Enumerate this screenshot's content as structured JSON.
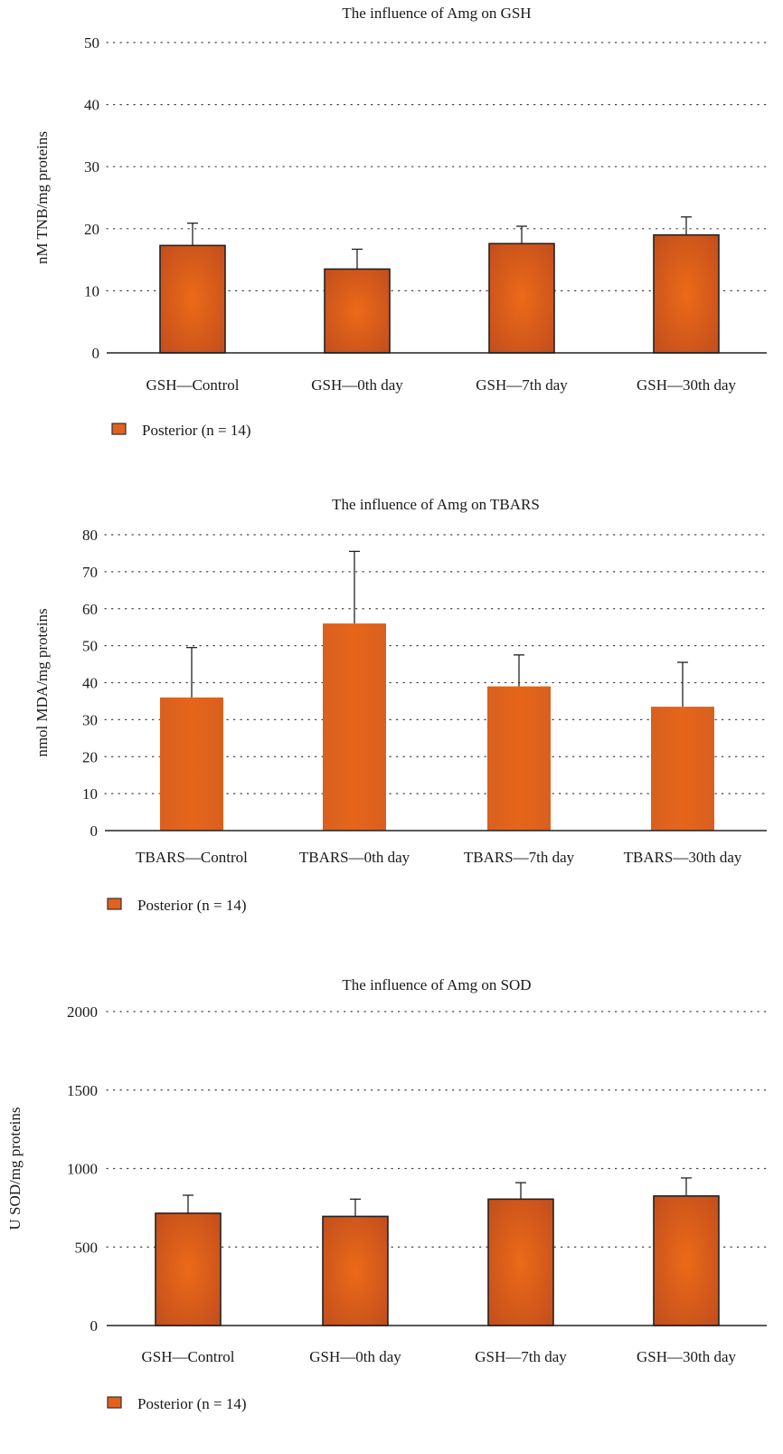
{
  "chart_data": [
    {
      "type": "bar",
      "title": "The influence of Amg on GSH",
      "ylabel": "nM TNB/mg proteins",
      "xlabel": "",
      "categories": [
        "GSH—Control",
        "GSH—0th day",
        "GSH—7th day",
        "GSH—30th day"
      ],
      "series": [
        {
          "name": "Posterior (n = 14)",
          "values": [
            17.3,
            13.5,
            17.6,
            19.0
          ],
          "error_upper": [
            3.6,
            3.2,
            2.8,
            2.9
          ]
        }
      ],
      "ylim": [
        0,
        50
      ],
      "yticks": [
        0,
        10,
        20,
        30,
        40,
        50
      ],
      "grid": "dotted horizontal",
      "legend": "bottom-left",
      "bar_style": "shaded"
    },
    {
      "type": "bar",
      "title": "The influence of Amg on TBARS",
      "ylabel": "nmol MDA/mg proteins",
      "xlabel": "",
      "categories": [
        "TBARS—Control",
        "TBARS—0th day",
        "TBARS—7th day",
        "TBARS—30th day"
      ],
      "series": [
        {
          "name": "Posterior (n = 14)",
          "values": [
            36,
            56,
            39,
            33.5
          ],
          "error_upper": [
            13.5,
            19.5,
            8.5,
            12
          ]
        }
      ],
      "ylim": [
        0,
        80
      ],
      "yticks": [
        0,
        10,
        20,
        30,
        40,
        50,
        60,
        70,
        80
      ],
      "grid": "dotted horizontal",
      "legend": "bottom-left",
      "bar_style": "flat"
    },
    {
      "type": "bar",
      "title": "The influence of Amg on SOD",
      "ylabel": "U SOD/mg proteins",
      "xlabel": "",
      "categories": [
        "GSH—Control",
        "GSH—0th day",
        "GSH—7th day",
        "GSH—30th day"
      ],
      "series": [
        {
          "name": "Posterior (n = 14)",
          "values": [
            715,
            695,
            805,
            825
          ],
          "error_upper": [
            115,
            110,
            105,
            115
          ]
        }
      ],
      "ylim": [
        0,
        2000
      ],
      "yticks": [
        0,
        500,
        1000,
        1500,
        2000
      ],
      "grid": "dotted horizontal",
      "legend": "bottom-left",
      "bar_style": "shaded"
    }
  ],
  "colors": {
    "bar_center": "#e8641a",
    "bar_edge": "#c4501c",
    "bar_flat": "#e2611c",
    "bar_outline": "#222222",
    "axis": "#222222",
    "grid": "#444444"
  }
}
